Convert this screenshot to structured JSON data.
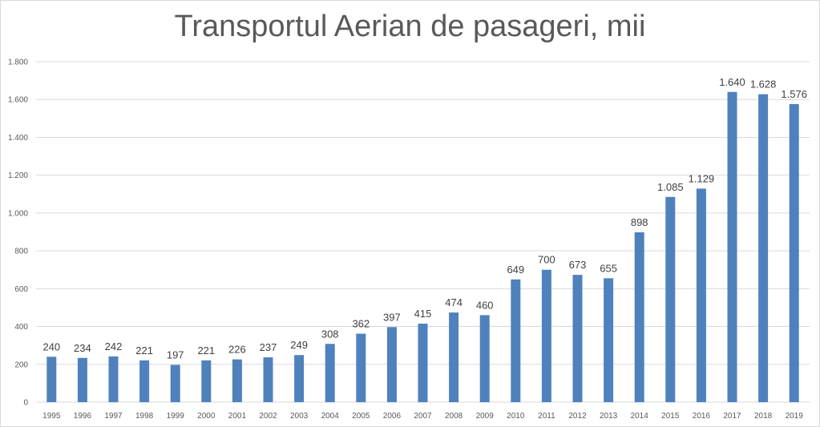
{
  "chart_data": {
    "type": "bar",
    "title": "Transportul Aerian de pasageri, mii",
    "xlabel": "",
    "ylabel": "",
    "categories": [
      "1995",
      "1996",
      "1997",
      "1998",
      "1999",
      "2000",
      "2001",
      "2002",
      "2003",
      "2004",
      "2005",
      "2006",
      "2007",
      "2008",
      "2009",
      "2010",
      "2011",
      "2012",
      "2013",
      "2014",
      "2015",
      "2016",
      "2017",
      "2018",
      "2019"
    ],
    "values": [
      240,
      234,
      242,
      221,
      197,
      221,
      226,
      237,
      249,
      308,
      362,
      397,
      415,
      474,
      460,
      649,
      700,
      673,
      655,
      898,
      1085,
      1129,
      1640,
      1628,
      1576
    ],
    "value_labels": [
      "240",
      "234",
      "242",
      "221",
      "197",
      "221",
      "226",
      "237",
      "249",
      "308",
      "362",
      "397",
      "415",
      "474",
      "460",
      "649",
      "700",
      "673",
      "655",
      "898",
      "1.085",
      "1.129",
      "1.640",
      "1.628",
      "1.576"
    ],
    "ylim": [
      0,
      1800
    ],
    "yticks": [
      0,
      200,
      400,
      600,
      800,
      1000,
      1200,
      1400,
      1600,
      1800
    ],
    "ytick_labels": [
      "0",
      "200",
      "400",
      "600",
      "800",
      "1.000",
      "1.200",
      "1.400",
      "1.600",
      "1.800"
    ],
    "grid": true,
    "legend": "none",
    "bar_color": "#4f81bd"
  }
}
